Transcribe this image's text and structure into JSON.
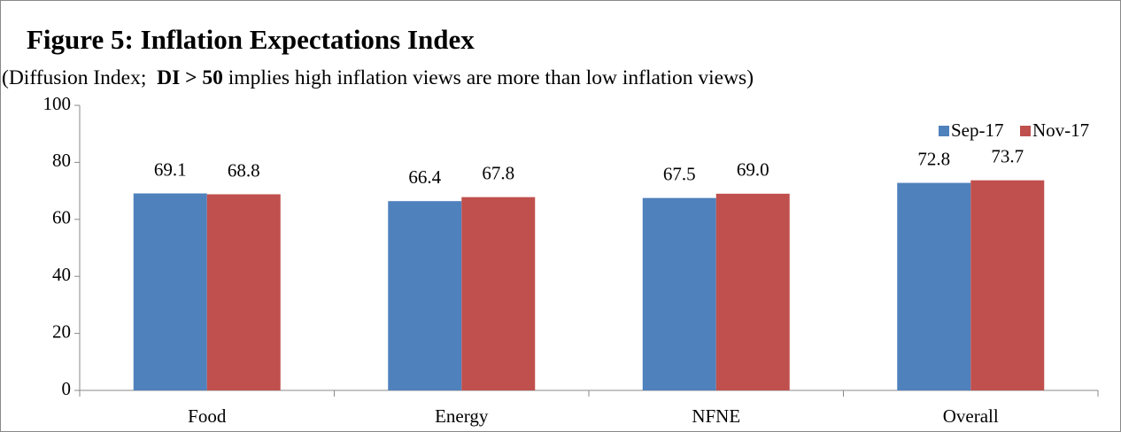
{
  "chart_data": {
    "type": "bar",
    "title": "Figure 5: Inflation Expectations Index",
    "subtitle": [
      {
        "text": "(Diffusion Index;  ",
        "bold": false
      },
      {
        "text": "DI > 50",
        "bold": true
      },
      {
        "text": " implies high inflation views are more than low inflation views)",
        "bold": false
      }
    ],
    "categories": [
      "Food",
      "Energy",
      "NFNE",
      "Overall"
    ],
    "series": [
      {
        "name": "Sep-17",
        "color": "#4f81bd",
        "values": [
          69.1,
          66.4,
          67.5,
          72.8
        ],
        "value_labels": [
          "69.1",
          "66.4",
          "67.5",
          "72.8"
        ]
      },
      {
        "name": "Nov-17",
        "color": "#c0504d",
        "values": [
          68.8,
          67.8,
          69.0,
          73.7
        ],
        "value_labels": [
          "68.8",
          "67.8",
          "69.0",
          "73.7"
        ]
      }
    ],
    "ylim": [
      0,
      100
    ],
    "yticks": [
      0,
      20,
      40,
      60,
      80,
      100
    ],
    "grid": false,
    "legend": "top-right"
  }
}
